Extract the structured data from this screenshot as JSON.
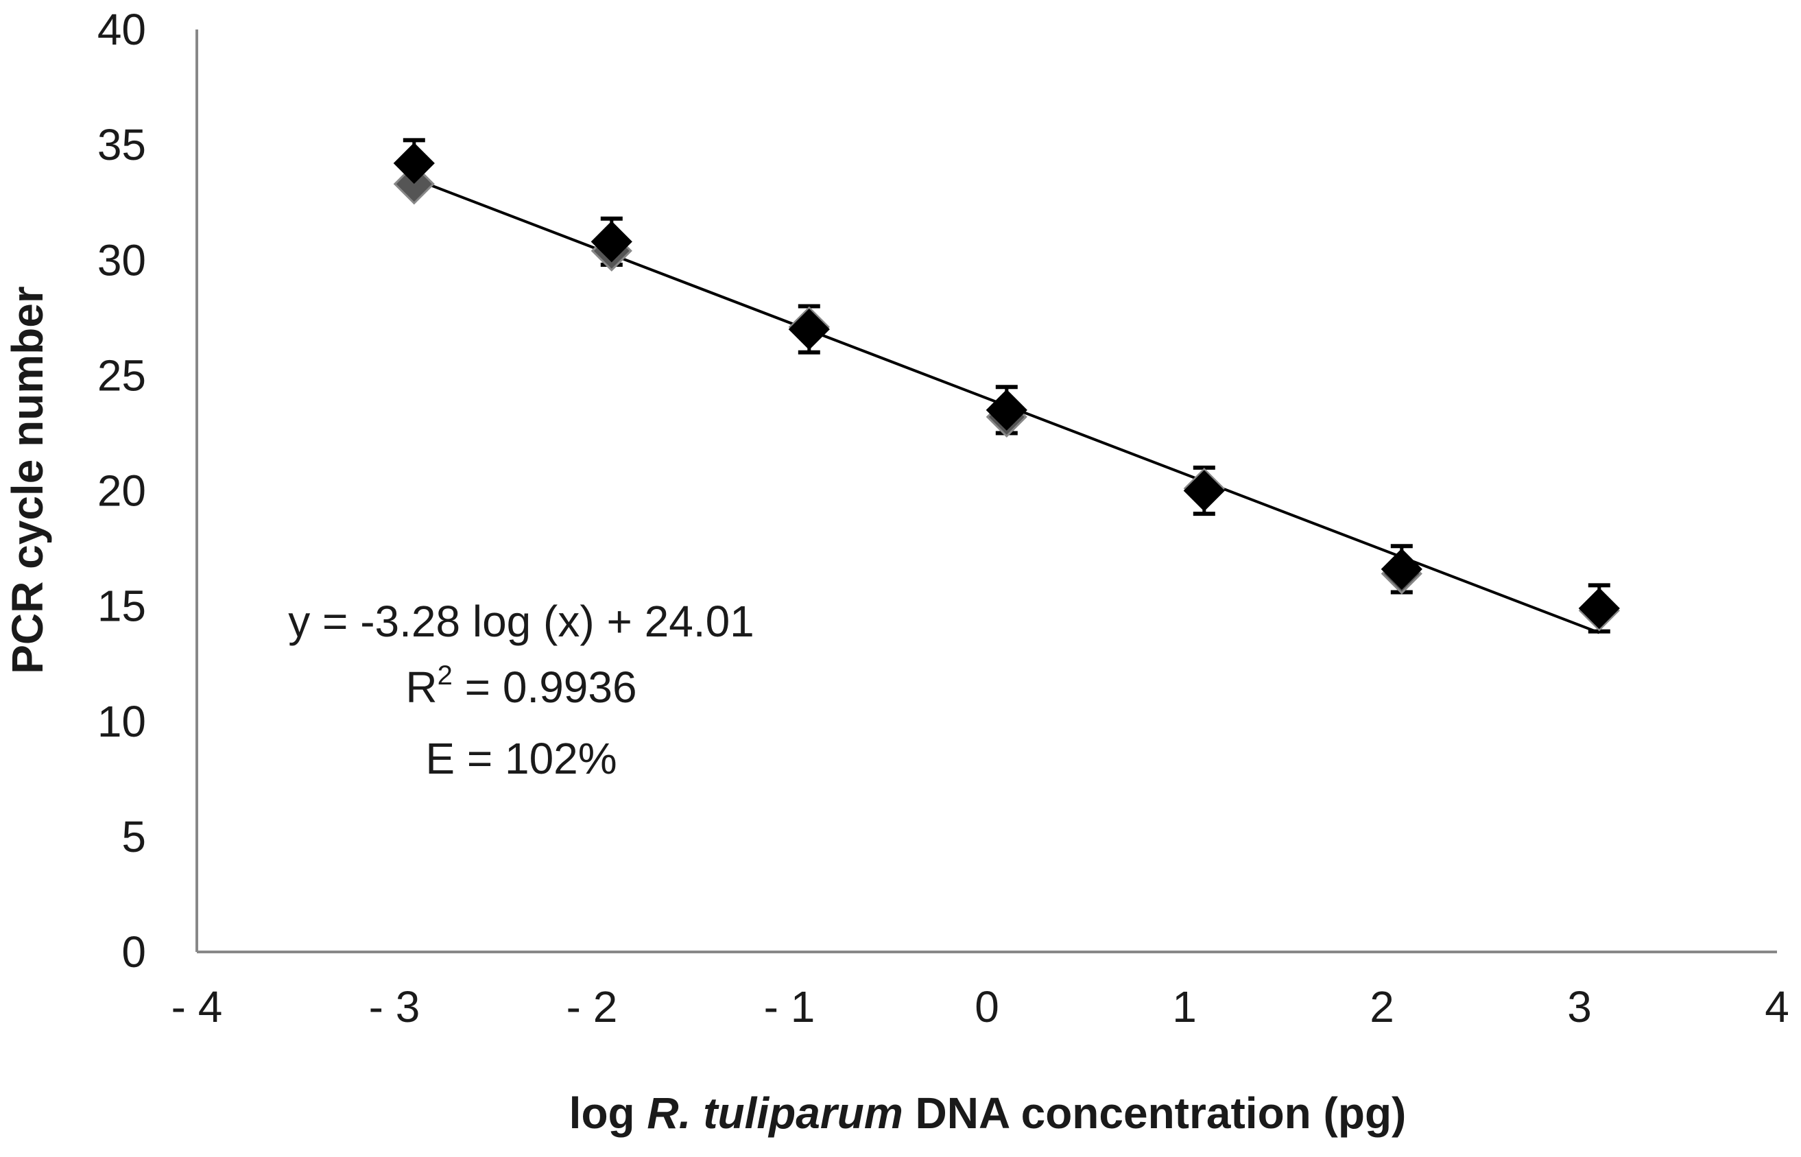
{
  "chart_data": {
    "type": "scatter",
    "title": "",
    "xlabel_parts": [
      {
        "text": "log ",
        "italic": false
      },
      {
        "text": "R. tuliparum",
        "italic": true
      },
      {
        "text": " DNA concentration (pg)",
        "italic": false
      }
    ],
    "ylabel": "PCR cycle number",
    "xlim": [
      -4,
      4
    ],
    "ylim": [
      0,
      40
    ],
    "x_ticks": [
      -4,
      -3,
      -2,
      -1,
      0,
      1,
      2,
      3,
      4
    ],
    "x_tick_labels": [
      "- 4",
      "- 3",
      "- 2",
      "- 1",
      "0",
      "1",
      "2",
      "3",
      "4"
    ],
    "y_ticks": [
      0,
      5,
      10,
      15,
      20,
      25,
      30,
      35,
      40
    ],
    "y_tick_labels": [
      "0",
      "5",
      "10",
      "15",
      "20",
      "25",
      "30",
      "35",
      "40"
    ],
    "grid": false,
    "series": [
      {
        "color": "#000000",
        "marker": "diamond",
        "points": [
          {
            "x": -2.9,
            "y": 34.2,
            "err": 1.0
          },
          {
            "x": -1.9,
            "y": 30.8,
            "err": 1.0
          },
          {
            "x": -0.9,
            "y": 27.0,
            "err": 1.0
          },
          {
            "x": 0.1,
            "y": 23.5,
            "err": 1.0
          },
          {
            "x": 1.1,
            "y": 20.0,
            "err": 1.0
          },
          {
            "x": 2.1,
            "y": 16.6,
            "err": 1.0
          },
          {
            "x": 3.1,
            "y": 14.9,
            "err": 1.0
          }
        ]
      },
      {
        "color": "#555555",
        "marker": "diamond",
        "points": [
          {
            "x": -2.9,
            "y": 33.3
          },
          {
            "x": -1.9,
            "y": 30.4
          },
          {
            "x": -0.9,
            "y": 27.1
          },
          {
            "x": 0.1,
            "y": 23.2
          },
          {
            "x": 1.1,
            "y": 20.1
          },
          {
            "x": 2.1,
            "y": 16.4
          },
          {
            "x": 3.1,
            "y": 14.8
          }
        ]
      }
    ],
    "trendline": {
      "slope": -3.28,
      "intercept": 24.01,
      "x_range": [
        -2.9,
        3.1
      ],
      "color": "#000000"
    },
    "annotations": {
      "equation": "y = -3.28 log (x) + 24.01",
      "r2_prefix": "R",
      "r2_sup": "2",
      "r2_rest": " = 0.9936",
      "efficiency": "E = 102%"
    },
    "colors": {
      "axis": "#888888",
      "text": "#1a1a1a"
    }
  }
}
